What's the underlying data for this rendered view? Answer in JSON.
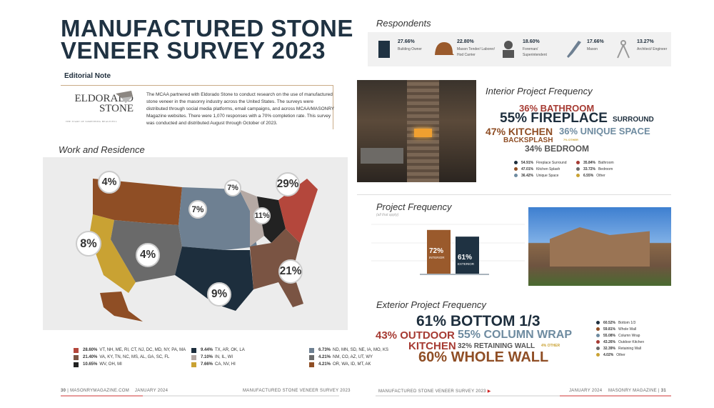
{
  "left": {
    "title_line1": "MANUFACTURED STONE",
    "title_line2": "VENEER  SURVEY 2023",
    "editorial_label": "Editorial Note",
    "logo": {
      "line1": "ELDORADO",
      "line2": "STONE",
      "tagline": "THE START OF SOMETHING BEAUTIFUL"
    },
    "editorial_text": "The MCAA partnered with Eldorado Stone to conduct research on the use of manufactured stone veneer in the masonry industry across the United States. The surveys were distributed through social media platforms, email campaigns, and across MCAA/MASONRY Magazine websites. There were 1,070 responses with a 70% completion rate. This survey was conducted and distributed August through October of 2023.",
    "section_title": "Work and Residence",
    "map_bubbles": [
      "4%",
      "7%",
      "7%",
      "29%",
      "11%",
      "8%",
      "4%",
      "21%",
      "9%"
    ],
    "legend": [
      {
        "pct": "28.60%",
        "states": "VT, NH, ME, RI, CT, NJ, DC, MD, NY, PA, MA",
        "color": "#b4473c"
      },
      {
        "pct": "21.40%",
        "states": "VA, KY, TN, NC, MS, AL, GA, SC, FL",
        "color": "#7a5443"
      },
      {
        "pct": "10.65%",
        "states": "WV, OH, MI",
        "color": "#222222"
      },
      {
        "pct": "9.44%",
        "states": "TX, AR, OK, LA",
        "color": "#1d2e3d"
      },
      {
        "pct": "7.10%",
        "states": "IN, IL, WI",
        "color": "#b5a9a4"
      },
      {
        "pct": "7.66%",
        "states": "CA, NV, HI",
        "color": "#c9a233"
      },
      {
        "pct": "6.73%",
        "states": "ND, MN, SD, NE, IA, MO, KS",
        "color": "#6e8092"
      },
      {
        "pct": "4.21%",
        "states": "NM, CO, AZ, UT, WY",
        "color": "#6a6a6a"
      },
      {
        "pct": "4.21%",
        "states": "OR, WA, ID, MT, AK",
        "color": "#8f4e25"
      }
    ],
    "footer": {
      "page": "30",
      "site": "MASONRYMAGAZINE.COM",
      "date": "JANUARY 2024",
      "section": "MANUFACTURED STONE VENEER  SURVEY 2023"
    }
  },
  "right": {
    "respondents_title": "Respondents",
    "respondents": [
      {
        "pct": "27.66%",
        "label": "Building Owner",
        "icon": "building-icon"
      },
      {
        "pct": "22.80%",
        "label": "Mason Tender/ Laborer/ Hod Carrier",
        "icon": "hard-hat-icon"
      },
      {
        "pct": "18.60%",
        "label": "Foreman/ Superintendent",
        "icon": "foreman-icon"
      },
      {
        "pct": "17.66%",
        "label": "Mason",
        "icon": "trowel-icon"
      },
      {
        "pct": "13.27%",
        "label": "Architect/ Engineer",
        "icon": "compass-icon"
      }
    ],
    "interior": {
      "title": "Interior Project Frequency",
      "words": {
        "bathroom": "36% BATHROOM",
        "fireplace": "55% FIREPLACE",
        "surround": "SURROUND",
        "kitchen": "47% KITCHEN",
        "backsplash": "BACKSPLASH",
        "unique": "36% UNIQUE SPACE",
        "other": "7% OTHER",
        "bedroom": "34% BEDROOM"
      },
      "legend": [
        {
          "pct": "54.91%",
          "label": "Fireplace Surround",
          "color": "#1d2e3d"
        },
        {
          "pct": "35.84%",
          "label": "Bathroom",
          "color": "#a63a32"
        },
        {
          "pct": "47.01%",
          "label": "Kitchen Splash",
          "color": "#8f4e25"
        },
        {
          "pct": "33.72%",
          "label": "Bedroom",
          "color": "#6a6a6a"
        },
        {
          "pct": "36.42%",
          "label": "Unique Space",
          "color": "#6e8ba0"
        },
        {
          "pct": "6.55%",
          "label": "Other",
          "color": "#c9a233"
        }
      ]
    },
    "project": {
      "title": "Project Frequency",
      "subtitle": "(all that apply)"
    },
    "chart_data": {
      "type": "bar",
      "categories": [
        "INTERIOR",
        "EXTERIOR"
      ],
      "values": [
        72,
        61
      ],
      "data_labels": [
        "72%",
        "61%"
      ],
      "colors": [
        "#9a5a2c",
        "#1f3242"
      ],
      "ylim": [
        0,
        100
      ]
    },
    "exterior": {
      "title": "Exterior Project Frequency",
      "words": {
        "bottom": "61% BOTTOM 1/3",
        "outdoor": "43% OUTDOOR",
        "kitchen": "KITCHEN",
        "column": "55% COLUMN WRAP",
        "retaining": "32% RETAINING WALL",
        "other": "4% OTHER",
        "whole": "60% WHOLE WALL"
      },
      "legend": [
        {
          "pct": "60.52%",
          "label": "Bottom 1/3",
          "color": "#1d2e3d"
        },
        {
          "pct": "59.81%",
          "label": "Whole Wall",
          "color": "#8f4e25"
        },
        {
          "pct": "55.08%",
          "label": "Column Wrap",
          "color": "#6e8ba0"
        },
        {
          "pct": "43.26%",
          "label": "Outdoor Kitchen",
          "color": "#a63a32"
        },
        {
          "pct": "32.39%",
          "label": "Retaining Wall",
          "color": "#6a6a6a"
        },
        {
          "pct": "4.02%",
          "label": "Other",
          "color": "#c9a233"
        }
      ]
    },
    "footer": {
      "section": "MANUFACTURED STONE VENEER  SURVEY 2023",
      "date": "JANUARY 2024",
      "magazine": "MASONRY MAGAZINE",
      "page": "31"
    }
  }
}
